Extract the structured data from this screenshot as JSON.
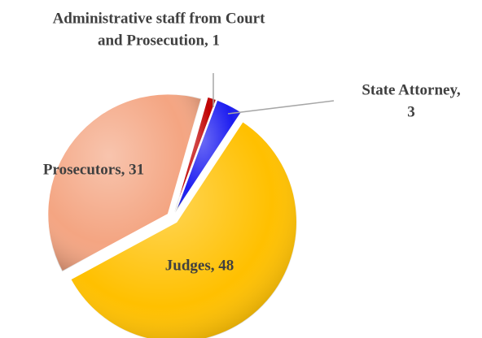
{
  "chart_data": {
    "type": "pie",
    "values": [
      1,
      3,
      48,
      31
    ],
    "value_labels": [
      [
        "Administrative  staff from Court",
        "and Prosecution, 1"
      ],
      [
        "State Attorney,",
        "3"
      ],
      [
        "Judges, 48"
      ],
      [
        "Prosecutors, 31"
      ]
    ],
    "colors": [
      "#c00000",
      "#1c1cf0",
      "#ffc000",
      "#f4a582"
    ]
  }
}
